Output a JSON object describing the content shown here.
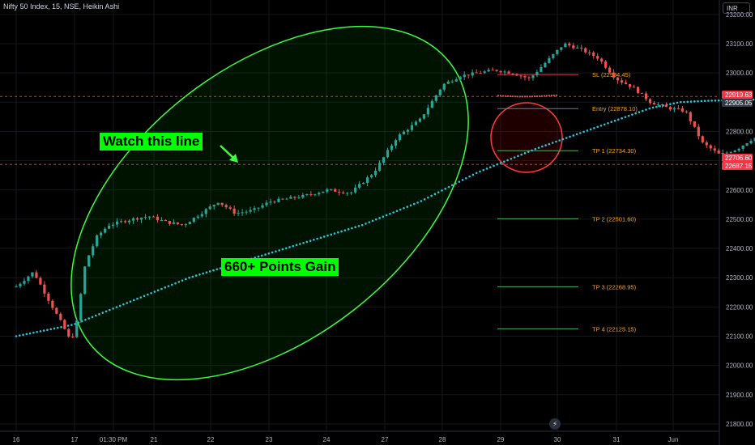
{
  "header": {
    "title": "Nifty 50 Index, 15, NSE, Heikin Ashi",
    "currency": "INR"
  },
  "annotations": {
    "watch_line": "Watch this line",
    "points_gain": "660+ Points Gain"
  },
  "colors": {
    "background": "#000000",
    "bull": "#26a69a",
    "bear": "#ef5350",
    "ma_line": "#26c6da",
    "highlight": "#00ff00",
    "exit_circle": "#ff3b3b",
    "level_text": "#f5a623"
  },
  "chart_data": {
    "type": "candlestick",
    "x": [
      "16",
      "17",
      "01:30 PM",
      "21",
      "22",
      "23",
      "24",
      "27",
      "28",
      "29",
      "30",
      "31",
      "Jun"
    ],
    "y_ticks": [
      23200,
      23100,
      23000,
      22900,
      22800,
      22700,
      22600,
      22500,
      22400,
      22300,
      22200,
      22100,
      22000,
      21900,
      21800
    ],
    "ylim": [
      21775,
      23230
    ],
    "price_labels": [
      {
        "value": "22919.63",
        "color": "#f23645"
      },
      {
        "value": "22905.05",
        "color": "#363a45"
      },
      {
        "value": "22706.60",
        "color": "#f23645"
      },
      {
        "value": "22687.15",
        "color": "#f23645"
      }
    ],
    "levels": [
      {
        "label": "SL (22994.45)",
        "value": 22994.45,
        "color": "#f23645"
      },
      {
        "label": "Entry (22878.10)",
        "value": 22878.1,
        "color": "#787b86"
      },
      {
        "label": "TP 1 (22734.30)",
        "value": 22734.3,
        "color": "#4caf50"
      },
      {
        "label": "TP 2 (22501.60)",
        "value": 22501.6,
        "color": "#4caf50"
      },
      {
        "label": "TP 3 (22268.95)",
        "value": 22268.95,
        "color": "#4caf50"
      },
      {
        "label": "TP 4 (22125.15)",
        "value": 22125.15,
        "color": "#4caf50"
      }
    ],
    "dashed_lines": [
      22919.63,
      22687.15
    ],
    "price_path": [
      [
        16,
        22270
      ],
      [
        16.3,
        22320
      ],
      [
        16.6,
        22210
      ],
      [
        16.8,
        22140
      ],
      [
        16.95,
        22080
      ],
      [
        17.05,
        22150
      ],
      [
        17.2,
        22350
      ],
      [
        17.4,
        22440
      ],
      [
        17.6,
        22480
      ],
      [
        17.8,
        22490
      ],
      [
        18,
        22500
      ],
      [
        18.3,
        22510
      ],
      [
        18.6,
        22490
      ],
      [
        18.9,
        22480
      ],
      [
        19.2,
        22520
      ],
      [
        19.5,
        22560
      ],
      [
        19.8,
        22520
      ],
      [
        20.1,
        22530
      ],
      [
        20.4,
        22560
      ],
      [
        20.7,
        22570
      ],
      [
        21,
        22580
      ],
      [
        21.4,
        22600
      ],
      [
        21.8,
        22590
      ],
      [
        22.2,
        22660
      ],
      [
        22.6,
        22780
      ],
      [
        23,
        22840
      ],
      [
        23.4,
        22960
      ],
      [
        23.7,
        22990
      ],
      [
        24,
        23000
      ],
      [
        24.3,
        23010
      ],
      [
        24.6,
        23000
      ],
      [
        24.9,
        22980
      ],
      [
        25.2,
        23040
      ],
      [
        25.5,
        23100
      ],
      [
        25.8,
        23080
      ],
      [
        26.1,
        23050
      ],
      [
        26.4,
        22980
      ],
      [
        26.7,
        22950
      ],
      [
        27,
        22900
      ],
      [
        27.3,
        22880
      ],
      [
        27.6,
        22870
      ],
      [
        27.9,
        22760
      ],
      [
        28.2,
        22720
      ],
      [
        28.5,
        22740
      ],
      [
        28.8,
        22780
      ],
      [
        29.1,
        22720
      ],
      [
        29.4,
        22690
      ]
    ],
    "ma_path": [
      [
        16,
        22100
      ],
      [
        17,
        22140
      ],
      [
        18,
        22220
      ],
      [
        19,
        22300
      ],
      [
        20,
        22360
      ],
      [
        21,
        22420
      ],
      [
        22,
        22480
      ],
      [
        23,
        22560
      ],
      [
        24,
        22660
      ],
      [
        25,
        22740
      ],
      [
        26,
        22810
      ],
      [
        27,
        22880
      ],
      [
        27.5,
        22900
      ],
      [
        28,
        22905
      ],
      [
        29,
        22910
      ],
      [
        29.4,
        22918
      ]
    ]
  }
}
